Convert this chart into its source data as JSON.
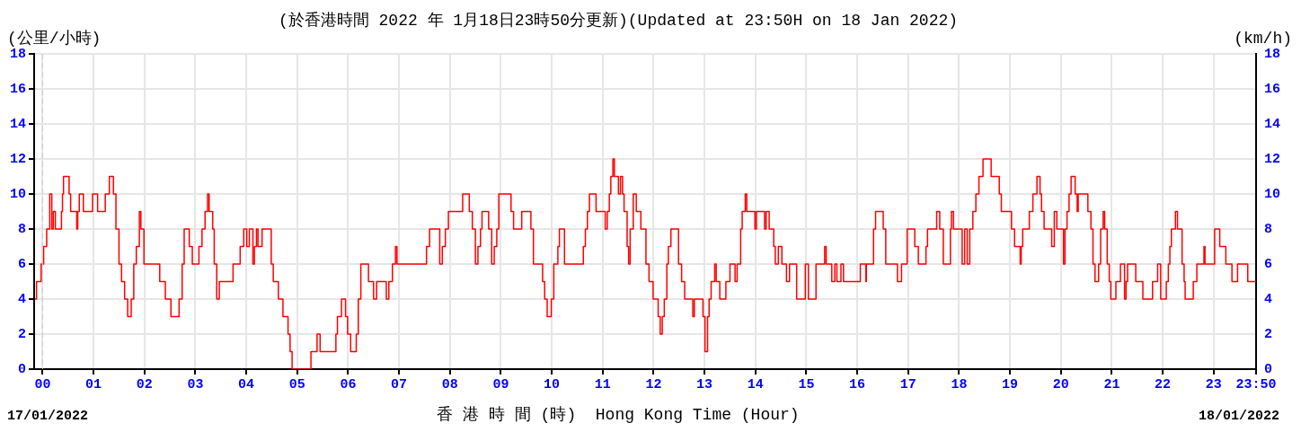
{
  "chart_data": {
    "type": "step",
    "title": "(於香港時間 2022 年 1月18日23時50分更新)(Updated at 23:50H on 18 Jan 2022)",
    "xlabel": "香 港 時 間 (時)  Hong Kong Time (Hour)",
    "ylabel": "(公里/小時)",
    "y2label": "(km/h)",
    "annotations": [
      "17/01/2022",
      "18/01/2022"
    ],
    "xlim": [
      -0.1667,
      23.8333
    ],
    "xticks": [
      {
        "value": 0,
        "label": "00"
      },
      {
        "value": 1,
        "label": "01"
      },
      {
        "value": 2,
        "label": "02"
      },
      {
        "value": 3,
        "label": "03"
      },
      {
        "value": 4,
        "label": "04"
      },
      {
        "value": 5,
        "label": "05"
      },
      {
        "value": 6,
        "label": "06"
      },
      {
        "value": 7,
        "label": "07"
      },
      {
        "value": 8,
        "label": "08"
      },
      {
        "value": 9,
        "label": "09"
      },
      {
        "value": 10,
        "label": "10"
      },
      {
        "value": 11,
        "label": "11"
      },
      {
        "value": 12,
        "label": "12"
      },
      {
        "value": 13,
        "label": "13"
      },
      {
        "value": 14,
        "label": "14"
      },
      {
        "value": 15,
        "label": "15"
      },
      {
        "value": 16,
        "label": "16"
      },
      {
        "value": 17,
        "label": "17"
      },
      {
        "value": 18,
        "label": "18"
      },
      {
        "value": 19,
        "label": "19"
      },
      {
        "value": 20,
        "label": "20"
      },
      {
        "value": 21,
        "label": "21"
      },
      {
        "value": 22,
        "label": "22"
      },
      {
        "value": 23,
        "label": "23"
      },
      {
        "value": 23.8333,
        "label": "23:50"
      }
    ],
    "ylim": [
      0,
      18
    ],
    "yticks": [
      0,
      2,
      4,
      6,
      8,
      10,
      12,
      14,
      16,
      18
    ],
    "y2lim": [
      0,
      18
    ],
    "y2ticks": [
      0,
      2,
      4,
      6,
      8,
      10,
      12,
      14,
      16,
      18
    ],
    "grid": true,
    "legend": false,
    "marker": "none",
    "line_style": "solid",
    "ref_lines": [
      {
        "axis": "x",
        "value": 0,
        "label": null,
        "color": "#cccccc",
        "line_style": "dashed"
      }
    ],
    "series": [
      {
        "color": "#ff0000",
        "x": [
          -0.15,
          -0.12,
          -0.03,
          0.02,
          0.08,
          0.14,
          0.18,
          0.21,
          0.25,
          0.37,
          0.39,
          0.41,
          0.52,
          0.55,
          0.67,
          0.69,
          0.72,
          0.8,
          0.98,
          1.08,
          1.23,
          1.31,
          1.39,
          1.44,
          1.5,
          1.55,
          1.61,
          1.67,
          1.74,
          1.79,
          1.84,
          1.9,
          1.93,
          1.99,
          2.3,
          2.41,
          2.52,
          2.68,
          2.74,
          2.78,
          2.88,
          2.94,
          3.07,
          3.13,
          3.19,
          3.24,
          3.27,
          3.34,
          3.37,
          3.42,
          3.47,
          3.74,
          3.88,
          3.95,
          4.01,
          4.06,
          4.13,
          4.16,
          4.2,
          4.23,
          4.31,
          4.49,
          4.53,
          4.63,
          4.72,
          4.82,
          4.86,
          4.9,
          5.27,
          5.39,
          5.45,
          5.76,
          5.79,
          5.87,
          5.95,
          5.99,
          6.05,
          6.16,
          6.2,
          6.25,
          6.4,
          6.5,
          6.56,
          6.75,
          6.8,
          6.87,
          6.93,
          6.96,
          7.54,
          7.6,
          7.8,
          7.85,
          7.91,
          7.97,
          8.25,
          8.38,
          8.44,
          8.5,
          8.55,
          8.6,
          8.63,
          8.76,
          8.82,
          8.87,
          8.92,
          8.96,
          9.2,
          9.25,
          9.41,
          9.59,
          9.64,
          9.82,
          9.86,
          9.91,
          9.99,
          10.04,
          10.12,
          10.15,
          10.25,
          10.62,
          10.66,
          10.7,
          10.74,
          10.87,
          11.05,
          11.09,
          11.13,
          11.16,
          11.2,
          11.23,
          11.31,
          11.35,
          11.39,
          11.42,
          11.48,
          11.51,
          11.54,
          11.6,
          11.66,
          11.75,
          11.85,
          11.91,
          11.99,
          12.09,
          12.13,
          12.17,
          12.21,
          12.26,
          12.29,
          12.34,
          12.49,
          12.55,
          12.61,
          12.77,
          12.8,
          12.97,
          13.01,
          13.06,
          13.09,
          13.13,
          13.2,
          13.23,
          13.3,
          13.42,
          13.5,
          13.6,
          13.64,
          13.71,
          13.74,
          13.8,
          13.83,
          13.99,
          14.02,
          14.18,
          14.21,
          14.27,
          14.36,
          14.39,
          14.45,
          14.52,
          14.61,
          14.67,
          14.81,
          14.98,
          15.04,
          15.19,
          15.36,
          15.39,
          15.5,
          15.56,
          15.6,
          15.68,
          15.73,
          16.06,
          16.17,
          16.18,
          16.32,
          16.36,
          16.51,
          16.56,
          16.79,
          16.87,
          16.98,
          17.13,
          17.2,
          17.35,
          17.38,
          17.56,
          17.62,
          17.69,
          17.83,
          17.85,
          17.89,
          18.06,
          18.11,
          18.16,
          18.21,
          18.27,
          18.33,
          18.39,
          18.47,
          18.63,
          18.79,
          18.83,
          19.03,
          19.09,
          19.2,
          19.22,
          19.25,
          19.38,
          19.45,
          19.53,
          19.59,
          19.62,
          19.67,
          19.82,
          19.87,
          19.92,
          20.05,
          20.08,
          20.12,
          20.16,
          20.2,
          20.28,
          20.32,
          20.34,
          20.53,
          20.59,
          20.63,
          20.67,
          20.74,
          20.78,
          20.83,
          20.86,
          20.91,
          20.95,
          20.98,
          21.08,
          21.17,
          21.25,
          21.28,
          21.31,
          21.47,
          21.61,
          21.8,
          21.9,
          21.96,
          22.07,
          22.11,
          22.14,
          22.17,
          22.25,
          22.29,
          22.38,
          22.42,
          22.44,
          22.6,
          22.67,
          22.81,
          22.83,
          23.02,
          23.12,
          23.24,
          23.36,
          23.47,
          23.67,
          23.83
        ],
        "values": [
          4,
          5,
          6,
          7,
          8,
          10,
          8,
          9,
          8,
          9,
          10,
          11,
          10,
          9,
          8,
          9,
          10,
          9,
          10,
          9,
          10,
          11,
          10,
          8,
          6,
          5,
          4,
          3,
          4,
          6,
          7,
          9,
          8,
          6,
          5,
          4,
          3,
          4,
          6,
          8,
          7,
          6,
          7,
          8,
          9,
          10,
          9,
          8,
          6,
          4,
          5,
          6,
          7,
          8,
          7,
          8,
          6,
          7,
          8,
          7,
          8,
          6,
          5,
          4,
          3,
          2,
          1,
          0,
          1,
          2,
          1,
          2,
          3,
          4,
          3,
          2,
          1,
          2,
          4,
          6,
          5,
          4,
          5,
          4,
          5,
          6,
          7,
          6,
          7,
          8,
          6,
          7,
          8,
          9,
          10,
          9,
          8,
          6,
          7,
          8,
          9,
          8,
          6,
          7,
          8,
          10,
          9,
          8,
          9,
          8,
          6,
          5,
          4,
          3,
          4,
          6,
          7,
          8,
          6,
          7,
          8,
          9,
          10,
          9,
          8,
          9,
          10,
          11,
          12,
          11,
          10,
          11,
          10,
          9,
          7,
          6,
          8,
          10,
          9,
          8,
          6,
          5,
          4,
          3,
          2,
          3,
          4,
          6,
          7,
          8,
          6,
          5,
          4,
          3,
          4,
          3,
          1,
          3,
          4,
          5,
          6,
          5,
          4,
          5,
          6,
          5,
          6,
          8,
          9,
          10,
          9,
          8,
          9,
          8,
          9,
          8,
          7,
          6,
          7,
          6,
          5,
          6,
          4,
          6,
          4,
          6,
          7,
          6,
          5,
          6,
          5,
          6,
          5,
          6,
          5,
          6,
          8,
          9,
          8,
          6,
          5,
          6,
          8,
          7,
          6,
          7,
          8,
          9,
          8,
          6,
          8,
          9,
          8,
          6,
          8,
          6,
          8,
          9,
          10,
          11,
          12,
          11,
          10,
          9,
          8,
          7,
          6,
          7,
          8,
          9,
          10,
          11,
          10,
          9,
          8,
          7,
          9,
          8,
          6,
          8,
          9,
          10,
          11,
          10,
          9,
          10,
          9,
          8,
          6,
          5,
          6,
          8,
          9,
          8,
          6,
          5,
          4,
          5,
          6,
          4,
          5,
          6,
          5,
          4,
          5,
          6,
          4,
          5,
          6,
          7,
          8,
          9,
          8,
          6,
          5,
          4,
          5,
          6,
          7,
          6,
          8,
          7,
          6,
          5,
          6,
          5,
          5
        ]
      }
    ]
  }
}
